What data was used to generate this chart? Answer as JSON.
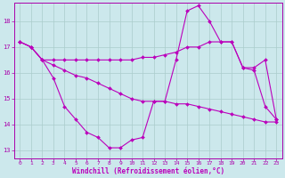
{
  "background_color": "#cce8ec",
  "grid_color": "#aacccc",
  "line_color": "#bb00bb",
  "marker_color": "#bb00bb",
  "xlabel": "Windchill (Refroidissement éolien,°C)",
  "xlabel_color": "#bb00bb",
  "tick_color": "#aa00aa",
  "xmin": 0,
  "xmax": 23,
  "ymin": 13,
  "ymax": 18,
  "yticks": [
    13,
    14,
    15,
    16,
    17,
    18
  ],
  "xticks": [
    0,
    1,
    2,
    3,
    4,
    5,
    6,
    7,
    8,
    9,
    10,
    11,
    12,
    13,
    14,
    15,
    16,
    17,
    18,
    19,
    20,
    21,
    22,
    23
  ],
  "s1_x": [
    0,
    1,
    2,
    3,
    4,
    5,
    6,
    7,
    8,
    9,
    10,
    11,
    12,
    13,
    14,
    15,
    16,
    17,
    18,
    19,
    20,
    21,
    22,
    23
  ],
  "s1_y": [
    17.2,
    17.0,
    16.5,
    15.8,
    14.7,
    14.2,
    13.7,
    13.5,
    13.1,
    13.1,
    13.4,
    13.5,
    14.9,
    14.9,
    16.5,
    18.4,
    18.6,
    18.0,
    17.2,
    17.2,
    16.2,
    16.1,
    14.7,
    14.2
  ],
  "s2_x": [
    0,
    1,
    2,
    3,
    4,
    5,
    6,
    7,
    8,
    9,
    10,
    11,
    12,
    13,
    14,
    15,
    16,
    17,
    18,
    19,
    20,
    21,
    22,
    23
  ],
  "s2_y": [
    17.2,
    17.0,
    16.5,
    16.5,
    16.5,
    16.5,
    16.5,
    16.5,
    16.5,
    16.5,
    16.5,
    16.6,
    16.6,
    16.7,
    16.8,
    17.0,
    17.0,
    17.2,
    17.2,
    17.2,
    16.2,
    16.2,
    16.5,
    14.2
  ],
  "s3_x": [
    0,
    1,
    2,
    3,
    4,
    5,
    6,
    7,
    8,
    9,
    10,
    11,
    12,
    13,
    14,
    15,
    16,
    17,
    18,
    19,
    20,
    21,
    22,
    23
  ],
  "s3_y": [
    17.2,
    17.0,
    16.5,
    16.3,
    16.1,
    15.9,
    15.8,
    15.6,
    15.4,
    15.2,
    15.0,
    14.9,
    14.9,
    14.9,
    14.8,
    14.8,
    14.7,
    14.6,
    14.5,
    14.4,
    14.3,
    14.2,
    14.1,
    14.1
  ]
}
